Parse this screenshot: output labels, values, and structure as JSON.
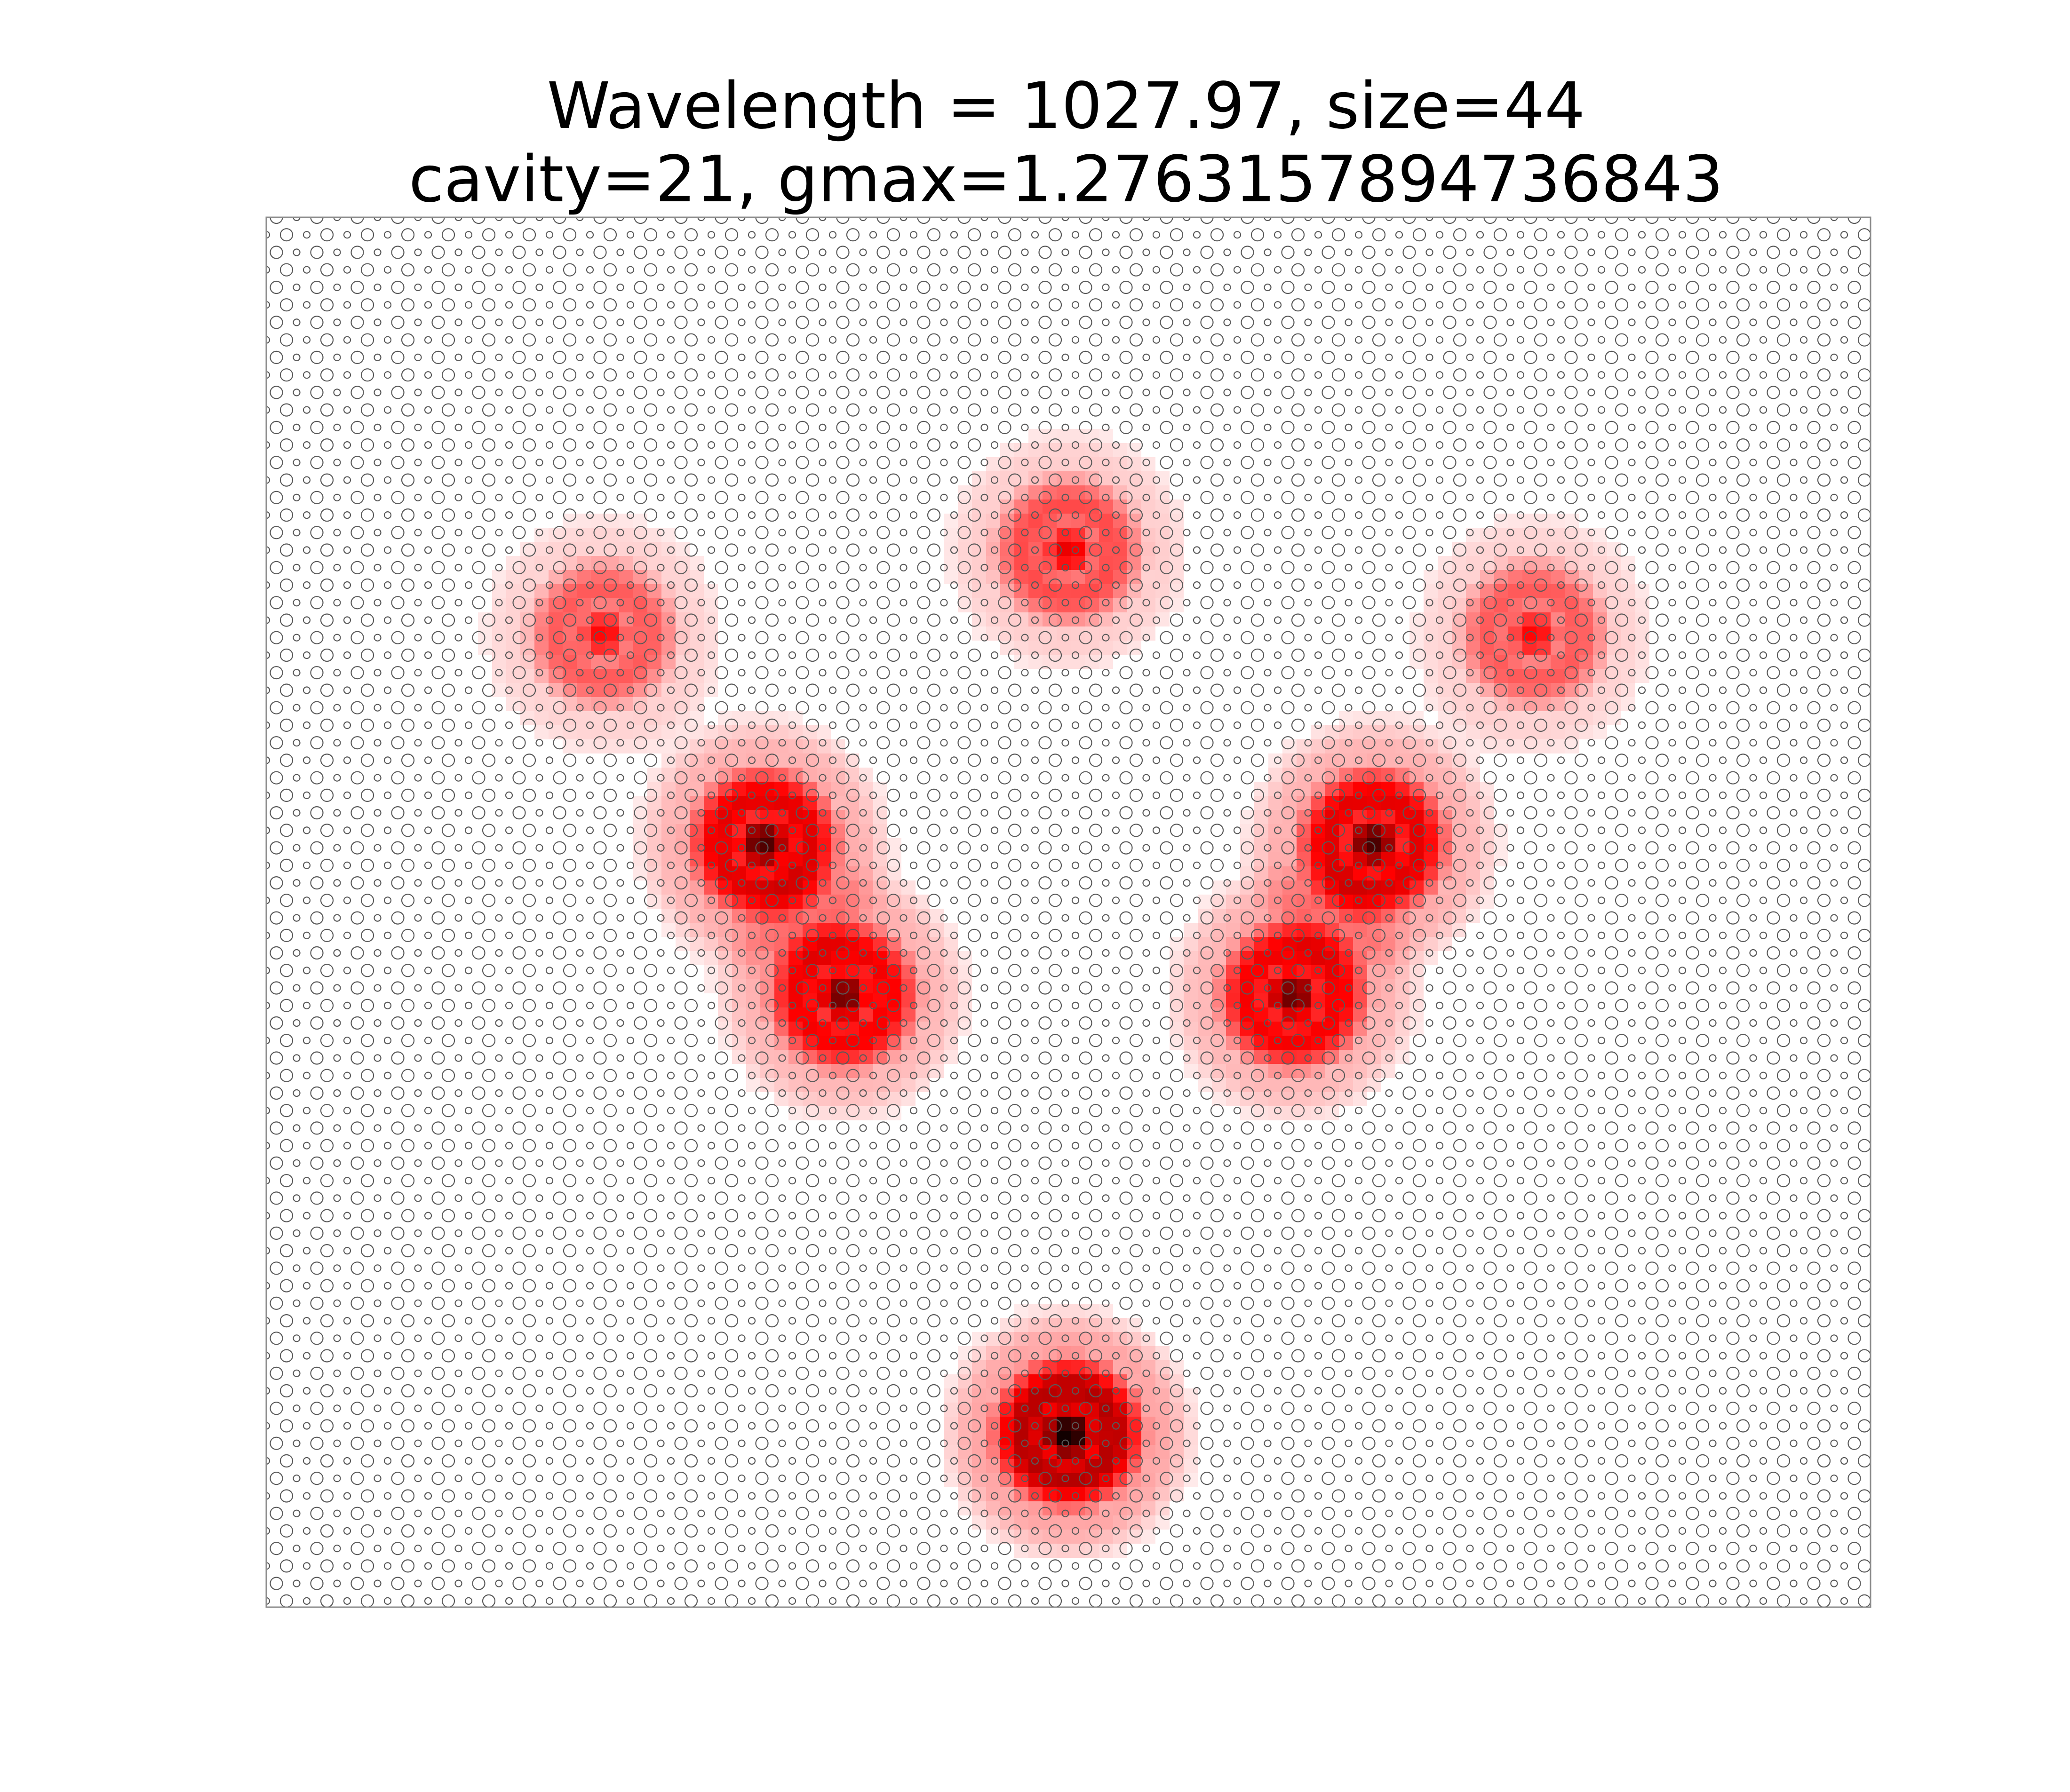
{
  "chart_data": {
    "type": "heatmap",
    "title_lines": [
      "Wavelength = 1027.97, size=44",
      "cavity=21, gmax=1.2763157894736843"
    ],
    "xlabel": "",
    "ylabel": "",
    "axes_visible": false,
    "grid": false,
    "lattice": "triangular photonic-crystal hole array, alternating large and small holes",
    "hole_color": "#595959",
    "frame_color": "#8c8c8c",
    "colormap": [
      "#ffffff",
      "#ff0000",
      "#000000"
    ],
    "field_hotspots": [
      {
        "region": "bottom cavity",
        "x": 0.0,
        "y": -0.75,
        "peak": 1.0
      },
      {
        "region": "left lobe upper",
        "x": -0.38,
        "y": 0.1,
        "peak": 0.85
      },
      {
        "region": "left lobe lower",
        "x": -0.28,
        "y": -0.12,
        "peak": 0.8
      },
      {
        "region": "right lobe upper",
        "x": 0.38,
        "y": 0.1,
        "peak": 0.85
      },
      {
        "region": "right lobe lower",
        "x": 0.28,
        "y": -0.12,
        "peak": 0.8
      },
      {
        "region": "top arc center",
        "x": 0.0,
        "y": 0.52,
        "peak": 0.55
      },
      {
        "region": "top arc left",
        "x": -0.58,
        "y": 0.4,
        "peak": 0.5
      },
      {
        "region": "top arc right",
        "x": 0.58,
        "y": 0.4,
        "peak": 0.5
      }
    ]
  }
}
